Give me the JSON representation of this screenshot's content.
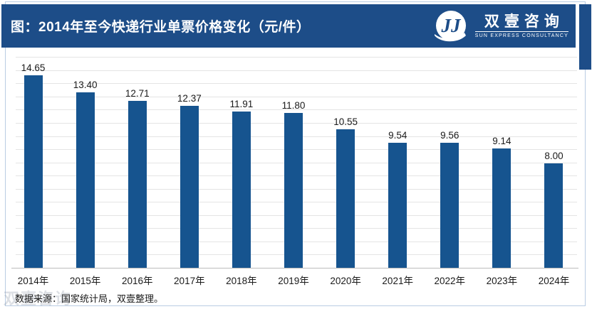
{
  "header": {
    "title": "图：2014年至今快递行业单票价格变化（元/件）",
    "logo_cn": "双壹咨询",
    "logo_en": "SUN EXPRESS CONSULTANCY",
    "logo_icon": "double-j-swoosh"
  },
  "footer": {
    "source": "数据来源：国家统计局，双壹整理。"
  },
  "watermark": "双壹咨询",
  "colors": {
    "banner_blue": "#1d4d88",
    "bar_blue": "#16548f",
    "gridline": "#e4e4e4",
    "axis": "#bcbcbc",
    "frame_border": "#b9cce3",
    "label_text": "#1a1a1a"
  },
  "chart_data": {
    "type": "bar",
    "title": "图：2014年至今快递行业单票价格变化（元/件）",
    "categories": [
      "2014年",
      "2015年",
      "2016年",
      "2017年",
      "2018年",
      "2019年",
      "2020年",
      "2021年",
      "2022年",
      "2023年",
      "2024年"
    ],
    "values": [
      14.65,
      13.4,
      12.71,
      12.37,
      11.91,
      11.8,
      10.55,
      9.54,
      9.56,
      9.14,
      8.0
    ],
    "value_labels": [
      "14.65",
      "13.40",
      "12.71",
      "12.37",
      "11.91",
      "11.80",
      "10.55",
      "9.54",
      "9.56",
      "9.14",
      "8.00"
    ],
    "unit": "元/件",
    "xlabel": "",
    "ylabel": "",
    "ylim": [
      0,
      16.5
    ],
    "grid": true,
    "gridline_step": 1,
    "data_labels": true,
    "legend_position": "none",
    "bar_color": "#16548f"
  }
}
